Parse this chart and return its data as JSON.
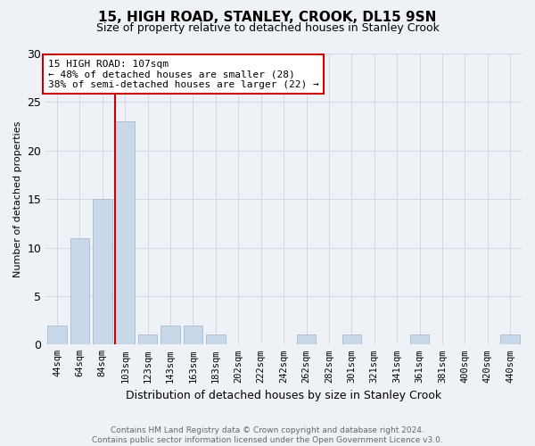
{
  "title": "15, HIGH ROAD, STANLEY, CROOK, DL15 9SN",
  "subtitle": "Size of property relative to detached houses in Stanley Crook",
  "xlabel": "Distribution of detached houses by size in Stanley Crook",
  "ylabel": "Number of detached properties",
  "categories": [
    "44sqm",
    "64sqm",
    "84sqm",
    "103sqm",
    "123sqm",
    "143sqm",
    "163sqm",
    "183sqm",
    "202sqm",
    "222sqm",
    "242sqm",
    "262sqm",
    "282sqm",
    "301sqm",
    "321sqm",
    "341sqm",
    "361sqm",
    "381sqm",
    "400sqm",
    "420sqm",
    "440sqm"
  ],
  "values": [
    2,
    11,
    15,
    23,
    1,
    2,
    2,
    1,
    0,
    0,
    0,
    1,
    0,
    1,
    0,
    0,
    1,
    0,
    0,
    0,
    1
  ],
  "bar_color": "#c8d8e8",
  "bar_edgecolor": "#a8bccf",
  "property_line_bar_index": 3,
  "property_line_color": "#cc0000",
  "annotation_text": "15 HIGH ROAD: 107sqm\n← 48% of detached houses are smaller (28)\n38% of semi-detached houses are larger (22) →",
  "annotation_box_facecolor": "#ffffff",
  "annotation_box_edgecolor": "#cc0000",
  "ylim": [
    0,
    30
  ],
  "yticks": [
    0,
    5,
    10,
    15,
    20,
    25,
    30
  ],
  "grid_color": "#d0dae4",
  "background_color": "#eef2f7",
  "footnote": "Contains HM Land Registry data © Crown copyright and database right 2024.\nContains public sector information licensed under the Open Government Licence v3.0.",
  "title_fontsize": 11,
  "subtitle_fontsize": 9,
  "xlabel_fontsize": 9,
  "ylabel_fontsize": 8,
  "footnote_fontsize": 6.5,
  "footnote_color": "#666666"
}
